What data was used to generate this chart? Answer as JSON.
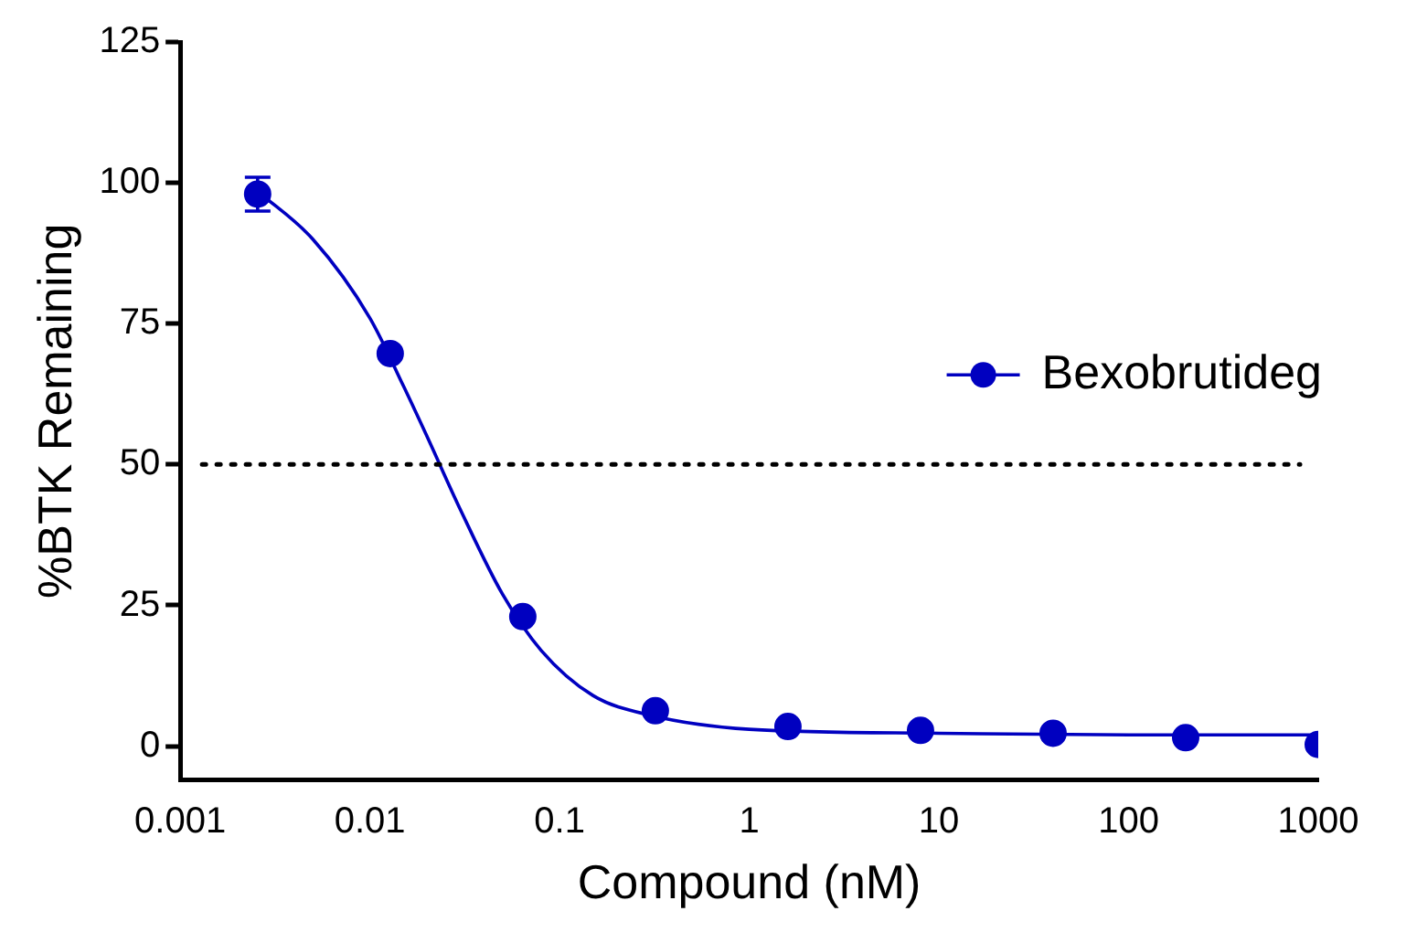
{
  "chart_data": {
    "type": "scatter",
    "xlabel": "Compound (nM)",
    "ylabel": "%BTK Remaining",
    "log": "x",
    "xlim": [
      0.001,
      1000
    ],
    "xticks": [
      0.001,
      0.01,
      0.1,
      1,
      10,
      100,
      1000
    ],
    "ylim": [
      -6,
      125
    ],
    "yticks": [
      0,
      25,
      50,
      75,
      100,
      125
    ],
    "grid": false,
    "legend": "right",
    "marker": "circle",
    "series": [
      {
        "name": "Bexobrutideg",
        "color": "#0000c0",
        "x": [
          0.00256,
          0.0128,
          0.064,
          0.32,
          1.6,
          8,
          40,
          200,
          1000
        ],
        "values": [
          98,
          69.7,
          23,
          6.3,
          3.5,
          2.8,
          2.3,
          1.5,
          0.3
        ],
        "errors": [
          3,
          null,
          null,
          null,
          null,
          null,
          null,
          null,
          null
        ]
      },
      {
        "type": "line",
        "color": "#0000c0",
        "marker": "none",
        "x": [
          0.00256,
          0.005,
          0.01,
          0.015,
          0.02,
          0.03,
          0.05,
          0.08,
          0.15,
          0.3,
          1,
          10,
          100,
          1000
        ],
        "values": [
          98.5,
          90,
          76,
          64,
          55,
          42,
          27,
          17,
          9,
          5.5,
          3,
          2.3,
          2,
          2
        ]
      }
    ],
    "ref_lines": [
      {
        "axis": "y",
        "value": 50,
        "line_style": "dotted",
        "color": "#000000"
      }
    ]
  }
}
